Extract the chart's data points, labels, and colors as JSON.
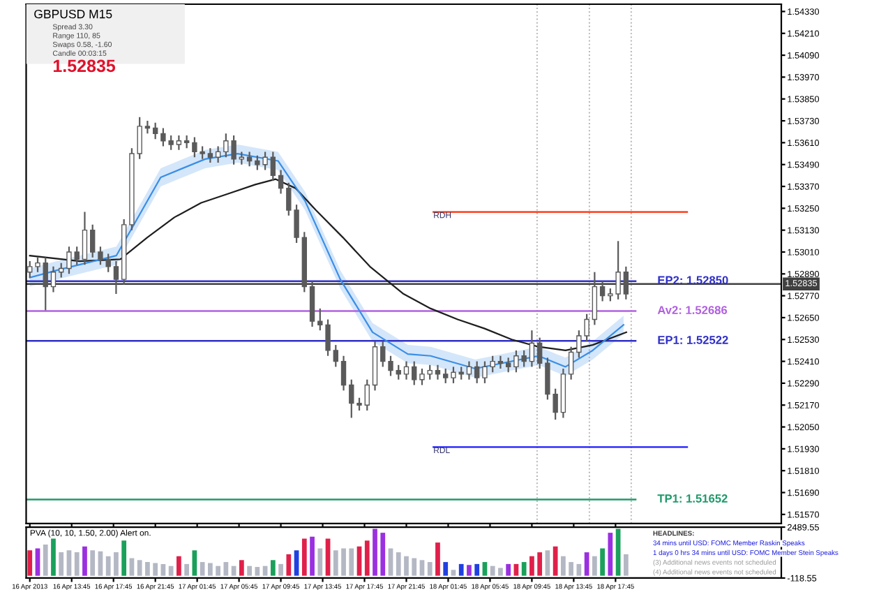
{
  "chart_data": [
    {
      "type": "candlestick",
      "title": "GBPUSD M15",
      "color": "#5a5a5a",
      "tick_labels": "y",
      "annotations": [
        "Spread 3.30",
        "Range 110, 85",
        "Swaps 0.58, -1.60",
        "Candle 00:03:15",
        "1.52835",
        {
          "text": "RDH",
          "x": "2013-04-18T00:20",
          "y": 1.5323
        },
        {
          "text": "RDL",
          "x": "2013-04-18T00:20",
          "y": 1.5194
        }
      ],
      "x": [
        "2013-04-16T09:45",
        "2013-04-16T10:30",
        "2013-04-16T11:15",
        "2013-04-16T12:00",
        "2013-04-16T12:45",
        "2013-04-16T13:30",
        "2013-04-16T14:15",
        "2013-04-16T15:00",
        "2013-04-16T15:45",
        "2013-04-16T16:30",
        "2013-04-16T17:15",
        "2013-04-16T18:00",
        "2013-04-16T18:45",
        "2013-04-16T19:30",
        "2013-04-16T20:15",
        "2013-04-16T21:00",
        "2013-04-16T21:45",
        "2013-04-16T22:30",
        "2013-04-16T23:15",
        "2013-04-17T00:00",
        "2013-04-17T00:45",
        "2013-04-17T01:30",
        "2013-04-17T02:15",
        "2013-04-17T03:00",
        "2013-04-17T03:45",
        "2013-04-17T04:30",
        "2013-04-17T05:15",
        "2013-04-17T06:00",
        "2013-04-17T06:45",
        "2013-04-17T07:30",
        "2013-04-17T08:15",
        "2013-04-17T09:00",
        "2013-04-17T09:45",
        "2013-04-17T10:30",
        "2013-04-17T11:15",
        "2013-04-17T12:00",
        "2013-04-17T12:45",
        "2013-04-17T13:30",
        "2013-04-17T14:15",
        "2013-04-17T15:00",
        "2013-04-17T15:45",
        "2013-04-17T16:30",
        "2013-04-17T17:15",
        "2013-04-17T18:00",
        "2013-04-17T18:45",
        "2013-04-17T19:30",
        "2013-04-17T20:15",
        "2013-04-17T21:00",
        "2013-04-17T21:45",
        "2013-04-17T22:30",
        "2013-04-17T23:15",
        "2013-04-18T00:00",
        "2013-04-18T00:45",
        "2013-04-18T01:30",
        "2013-04-18T02:15",
        "2013-04-18T03:00",
        "2013-04-18T03:45",
        "2013-04-18T04:30",
        "2013-04-18T05:15",
        "2013-04-18T06:00",
        "2013-04-18T06:45",
        "2013-04-18T07:30",
        "2013-04-18T08:15",
        "2013-04-18T09:00",
        "2013-04-18T09:45",
        "2013-04-18T10:30",
        "2013-04-18T11:15",
        "2013-04-18T12:00",
        "2013-04-18T12:45",
        "2013-04-18T13:30",
        "2013-04-18T14:15",
        "2013-04-18T15:00",
        "2013-04-18T15:45",
        "2013-04-18T16:30",
        "2013-04-18T17:15",
        "2013-04-18T18:00",
        "2013-04-18T18:45"
      ],
      "ohlc": [
        [
          1.529,
          1.5296,
          1.5287,
          1.5293
        ],
        [
          1.5293,
          1.5298,
          1.529,
          1.5295
        ],
        [
          1.5295,
          1.5298,
          1.5269,
          1.5282
        ],
        [
          1.5282,
          1.5293,
          1.5279,
          1.529
        ],
        [
          1.529,
          1.5295,
          1.5287,
          1.5292
        ],
        [
          1.5292,
          1.5304,
          1.5289,
          1.5301
        ],
        [
          1.5301,
          1.5304,
          1.5294,
          1.5297
        ],
        [
          1.5297,
          1.5323,
          1.5294,
          1.5313
        ],
        [
          1.5313,
          1.5316,
          1.5298,
          1.5301
        ],
        [
          1.5301,
          1.5304,
          1.5294,
          1.5297
        ],
        [
          1.5297,
          1.53,
          1.529,
          1.5293
        ],
        [
          1.5293,
          1.5296,
          1.5278,
          1.5286
        ],
        [
          1.5286,
          1.5319,
          1.5283,
          1.5316
        ],
        [
          1.5316,
          1.5358,
          1.5313,
          1.5355
        ],
        [
          1.5355,
          1.5375,
          1.5352,
          1.537
        ],
        [
          1.537,
          1.5373,
          1.5366,
          1.5369
        ],
        [
          1.5369,
          1.5372,
          1.5363,
          1.5366
        ],
        [
          1.5366,
          1.5369,
          1.5359,
          1.5362
        ],
        [
          1.5362,
          1.5365,
          1.5357,
          1.536
        ],
        [
          1.536,
          1.5365,
          1.5357,
          1.5362
        ],
        [
          1.5362,
          1.5365,
          1.5358,
          1.5361
        ],
        [
          1.5361,
          1.5364,
          1.5353,
          1.5356
        ],
        [
          1.5356,
          1.5359,
          1.5352,
          1.5355
        ],
        [
          1.5355,
          1.5358,
          1.535,
          1.5353
        ],
        [
          1.5353,
          1.5359,
          1.535,
          1.5356
        ],
        [
          1.5356,
          1.5366,
          1.5353,
          1.5362
        ],
        [
          1.5362,
          1.5365,
          1.5349,
          1.5352
        ],
        [
          1.5352,
          1.5356,
          1.5349,
          1.5353
        ],
        [
          1.5353,
          1.5356,
          1.5348,
          1.5351
        ],
        [
          1.5351,
          1.5354,
          1.5346,
          1.5349
        ],
        [
          1.5349,
          1.5356,
          1.5346,
          1.5353
        ],
        [
          1.5353,
          1.5356,
          1.534,
          1.5343
        ],
        [
          1.5343,
          1.5346,
          1.5333,
          1.5336
        ],
        [
          1.5336,
          1.5339,
          1.5321,
          1.5324
        ],
        [
          1.5324,
          1.5327,
          1.5306,
          1.5309
        ],
        [
          1.5309,
          1.5312,
          1.5279,
          1.5282
        ],
        [
          1.5282,
          1.5285,
          1.526,
          1.5263
        ],
        [
          1.5263,
          1.527,
          1.5258,
          1.5261
        ],
        [
          1.5261,
          1.5264,
          1.5244,
          1.5247
        ],
        [
          1.5247,
          1.525,
          1.5238,
          1.5241
        ],
        [
          1.5241,
          1.5244,
          1.5225,
          1.5228
        ],
        [
          1.5228,
          1.5231,
          1.521,
          1.5218
        ],
        [
          1.5218,
          1.5221,
          1.5214,
          1.5217
        ],
        [
          1.5217,
          1.5231,
          1.5214,
          1.5228
        ],
        [
          1.5228,
          1.5252,
          1.5225,
          1.5249
        ],
        [
          1.5249,
          1.5252,
          1.5238,
          1.5241
        ],
        [
          1.5241,
          1.5244,
          1.5233,
          1.5236
        ],
        [
          1.5236,
          1.5239,
          1.5231,
          1.5234
        ],
        [
          1.5234,
          1.5241,
          1.5231,
          1.5238
        ],
        [
          1.5238,
          1.5241,
          1.5228,
          1.5231
        ],
        [
          1.5231,
          1.5237,
          1.5228,
          1.5234
        ],
        [
          1.5234,
          1.5239,
          1.5231,
          1.5236
        ],
        [
          1.5236,
          1.5239,
          1.5231,
          1.5234
        ],
        [
          1.5234,
          1.5237,
          1.5229,
          1.5232
        ],
        [
          1.5232,
          1.5238,
          1.5229,
          1.5235
        ],
        [
          1.5235,
          1.5238,
          1.5231,
          1.5234
        ],
        [
          1.5234,
          1.5241,
          1.5231,
          1.5238
        ],
        [
          1.5238,
          1.5241,
          1.5229,
          1.5232
        ],
        [
          1.5232,
          1.5241,
          1.5229,
          1.5238
        ],
        [
          1.5238,
          1.5244,
          1.5235,
          1.5241
        ],
        [
          1.5241,
          1.5244,
          1.5237,
          1.524
        ],
        [
          1.524,
          1.5243,
          1.5235,
          1.5238
        ],
        [
          1.5238,
          1.5247,
          1.5235,
          1.5244
        ],
        [
          1.5244,
          1.5247,
          1.5238,
          1.5241
        ],
        [
          1.5241,
          1.5258,
          1.5238,
          1.5251
        ],
        [
          1.5251,
          1.5254,
          1.5237,
          1.524
        ],
        [
          1.524,
          1.5243,
          1.522,
          1.5223
        ],
        [
          1.5223,
          1.5226,
          1.5209,
          1.5213
        ],
        [
          1.5213,
          1.5237,
          1.521,
          1.5234
        ],
        [
          1.5234,
          1.5249,
          1.5231,
          1.5246
        ],
        [
          1.5246,
          1.5258,
          1.5243,
          1.5255
        ],
        [
          1.5255,
          1.5267,
          1.5252,
          1.5264
        ],
        [
          1.5264,
          1.529,
          1.5261,
          1.5282
        ],
        [
          1.5282,
          1.5285,
          1.5274,
          1.5277
        ],
        [
          1.5277,
          1.5281,
          1.5274,
          1.5278
        ],
        [
          1.5278,
          1.5307,
          1.5275,
          1.529
        ],
        [
          1.529,
          1.5293,
          1.5275,
          1.5278
        ]
      ],
      "series": [
        {
          "type": "line",
          "color": "#1e1e1e",
          "x": [
            "2013-04-16T09:45",
            "2013-04-16T14:31",
            "2013-04-16T18:24",
            "2013-04-16T20:59",
            "2013-04-16T23:34",
            "2013-04-17T02:08",
            "2013-04-17T04:43",
            "2013-04-17T07:18",
            "2013-04-17T09:14",
            "2013-04-17T11:10",
            "2013-04-17T13:06",
            "2013-04-17T15:41",
            "2013-04-17T18:16",
            "2013-04-17T21:29",
            "2013-04-18T00:04",
            "2013-04-18T02:39",
            "2013-04-18T05:14",
            "2013-04-18T07:49",
            "2013-04-18T10:23",
            "2013-04-18T12:58",
            "2013-04-18T15:34",
            "2013-04-18T18:47"
          ],
          "values": [
            1.5299,
            1.5296,
            1.5297,
            1.5309,
            1.532,
            1.5328,
            1.5333,
            1.5338,
            1.5341,
            1.5336,
            1.5324,
            1.5309,
            1.5293,
            1.5278,
            1.527,
            1.5264,
            1.5259,
            1.5253,
            1.5249,
            1.5247,
            1.525,
            1.5257
          ]
        },
        {
          "type": "line",
          "color": "#3a8ee6",
          "x": [
            "2013-04-16T09:45",
            "2013-04-16T12:20",
            "2013-04-16T18:01",
            "2013-04-16T22:16",
            "2013-04-17T02:31",
            "2013-04-17T05:37",
            "2013-04-17T09:29",
            "2013-04-17T12:04",
            "2013-04-17T15:26",
            "2013-04-17T18:31",
            "2013-04-17T21:53",
            "2013-04-18T00:04",
            "2013-04-18T04:20",
            "2013-04-18T10:23",
            "2013-04-18T12:58",
            "2013-04-18T15:34",
            "2013-04-18T18:31"
          ],
          "values": [
            1.5287,
            1.5291,
            1.5299,
            1.5342,
            1.5352,
            1.5355,
            1.5351,
            1.5329,
            1.5286,
            1.5257,
            1.5245,
            1.5244,
            1.5237,
            1.5244,
            1.5238,
            1.5247,
            1.5261
          ],
          "lower": [
            1.5282,
            1.5286,
            1.5294,
            1.5337,
            1.5347,
            1.535,
            1.5346,
            1.5324,
            1.5281,
            1.5252,
            1.524,
            1.5239,
            1.5232,
            1.5239,
            1.5233,
            1.5242,
            1.5256
          ],
          "upper": [
            1.5292,
            1.5296,
            1.5304,
            1.5347,
            1.5357,
            1.536,
            1.5356,
            1.5334,
            1.5291,
            1.5262,
            1.525,
            1.5249,
            1.5242,
            1.5249,
            1.5243,
            1.5252,
            1.5266
          ]
        },
        {
          "type": "line",
          "color": "#ff2a00",
          "x": [
            "2013-04-18T00:20",
            "2013-04-19T00:36"
          ],
          "values": [
            1.5323,
            1.5323
          ]
        },
        {
          "type": "line",
          "color": "#1a1aff",
          "x": [
            "2013-04-18T00:20",
            "2013-04-19T00:36"
          ],
          "values": [
            1.5194,
            1.5194
          ]
        }
      ],
      "ref_lines": [
        {
          "axis": "y",
          "value": 1.5285,
          "label": "EP2: 1.52850",
          "color": "#3030c8"
        },
        {
          "axis": "y",
          "value": 1.52686,
          "label": "Av2: 1.52686",
          "color": "#b060e0"
        },
        {
          "axis": "y",
          "value": 1.52522,
          "label": "EP1: 1.52522",
          "color": "#3030c8"
        },
        {
          "axis": "y",
          "value": 1.51652,
          "label": "TP1: 1.51652",
          "color": "#1f9a6a"
        },
        {
          "axis": "y",
          "value": 1.52835,
          "label": "1.52835",
          "color": "#404040"
        },
        {
          "axis": "x",
          "value": "2013-04-18T10:15",
          "color": "#b4b4b4",
          "line_style": "dotted"
        },
        {
          "axis": "x",
          "value": "2013-04-18T15:15",
          "color": "#b4b4b4",
          "line_style": "dotted"
        },
        {
          "axis": "x",
          "value": "2013-04-18T19:15",
          "color": "#b4b4b4",
          "line_style": "dotted"
        }
      ],
      "xlim": [
        "2013-04-16T09:24",
        "2013-04-19T09:36"
      ],
      "xticks": [
        {
          "value": "2013-04-16T09:45",
          "label": null
        },
        {
          "value": "2013-04-16T13:45",
          "label": null
        },
        {
          "value": "2013-04-16T17:45",
          "label": null
        },
        {
          "value": "2013-04-16T21:45",
          "label": null
        },
        {
          "value": "2013-04-17T01:45",
          "label": null
        },
        {
          "value": "2013-04-17T05:45",
          "label": null
        },
        {
          "value": "2013-04-17T09:45",
          "label": null
        },
        {
          "value": "2013-04-17T13:45",
          "label": null
        },
        {
          "value": "2013-04-17T17:45",
          "label": null
        },
        {
          "value": "2013-04-17T21:45",
          "label": null
        },
        {
          "value": "2013-04-18T01:45",
          "label": null
        },
        {
          "value": "2013-04-18T05:45",
          "label": null
        },
        {
          "value": "2013-04-18T09:45",
          "label": null
        },
        {
          "value": "2013-04-18T13:45",
          "label": null
        },
        {
          "value": "2013-04-18T17:45",
          "label": null
        }
      ],
      "ylim": [
        1.5152,
        1.5437
      ],
      "yticks": [
        {
          "value": 1.5433,
          "label": "1.54330"
        },
        {
          "value": 1.5421,
          "label": "1.54210"
        },
        {
          "value": 1.5409,
          "label": "1.54090"
        },
        {
          "value": 1.5397,
          "label": "1.53970"
        },
        {
          "value": 1.5385,
          "label": "1.53850"
        },
        {
          "value": 1.5373,
          "label": "1.53730"
        },
        {
          "value": 1.5361,
          "label": "1.53610"
        },
        {
          "value": 1.5349,
          "label": "1.53490"
        },
        {
          "value": 1.5337,
          "label": "1.53370"
        },
        {
          "value": 1.5325,
          "label": "1.53250"
        },
        {
          "value": 1.5313,
          "label": "1.53130"
        },
        {
          "value": 1.5301,
          "label": "1.53010"
        },
        {
          "value": 1.5289,
          "label": "1.52890"
        },
        {
          "value": 1.5277,
          "label": "1.52770"
        },
        {
          "value": 1.5265,
          "label": "1.52650"
        },
        {
          "value": 1.5253,
          "label": "1.52530"
        },
        {
          "value": 1.5241,
          "label": "1.52410"
        },
        {
          "value": 1.5229,
          "label": "1.52290"
        },
        {
          "value": 1.5217,
          "label": "1.52170"
        },
        {
          "value": 1.5205,
          "label": "1.52050"
        },
        {
          "value": 1.5193,
          "label": "1.51930"
        },
        {
          "value": 1.5181,
          "label": "1.51810"
        },
        {
          "value": 1.5169,
          "label": "1.51690"
        },
        {
          "value": 1.5157,
          "label": "1.51570"
        }
      ]
    },
    {
      "type": "bar",
      "title": "PVA (10, 10, 1.50, 2.00) Alert on.",
      "annotations": [
        "HEADLINES:",
        "34 mins until USD: FOMC Member Raskin Speaks",
        "1 days 0 hrs 34 mins until USD: FOMC Member Stein Speaks",
        "(3) Additional news events not scheduled",
        "(4) Additional news events not scheduled"
      ],
      "x": [
        "2013-04-16T09:45",
        "2013-04-16T10:30",
        "2013-04-16T11:15",
        "2013-04-16T12:00",
        "2013-04-16T12:45",
        "2013-04-16T13:30",
        "2013-04-16T14:15",
        "2013-04-16T15:00",
        "2013-04-16T15:45",
        "2013-04-16T16:30",
        "2013-04-16T17:15",
        "2013-04-16T18:00",
        "2013-04-16T18:45",
        "2013-04-16T19:30",
        "2013-04-16T20:15",
        "2013-04-16T21:00",
        "2013-04-16T21:45",
        "2013-04-16T22:30",
        "2013-04-16T23:15",
        "2013-04-17T00:00",
        "2013-04-17T00:45",
        "2013-04-17T01:30",
        "2013-04-17T02:15",
        "2013-04-17T03:00",
        "2013-04-17T03:45",
        "2013-04-17T04:30",
        "2013-04-17T05:15",
        "2013-04-17T06:00",
        "2013-04-17T06:45",
        "2013-04-17T07:30",
        "2013-04-17T08:15",
        "2013-04-17T09:00",
        "2013-04-17T09:45",
        "2013-04-17T10:30",
        "2013-04-17T11:15",
        "2013-04-17T12:00",
        "2013-04-17T12:45",
        "2013-04-17T13:30",
        "2013-04-17T14:15",
        "2013-04-17T15:00",
        "2013-04-17T15:45",
        "2013-04-17T16:30",
        "2013-04-17T17:15",
        "2013-04-17T18:00",
        "2013-04-17T18:45",
        "2013-04-17T19:30",
        "2013-04-17T20:15",
        "2013-04-17T21:00",
        "2013-04-17T21:45",
        "2013-04-17T22:30",
        "2013-04-17T23:15",
        "2013-04-18T00:00",
        "2013-04-18T00:45",
        "2013-04-18T01:30",
        "2013-04-18T02:15",
        "2013-04-18T03:00",
        "2013-04-18T03:45",
        "2013-04-18T04:30",
        "2013-04-18T05:15",
        "2013-04-18T06:00",
        "2013-04-18T06:45",
        "2013-04-18T07:30",
        "2013-04-18T08:15",
        "2013-04-18T09:00",
        "2013-04-18T09:45",
        "2013-04-18T10:30",
        "2013-04-18T11:15",
        "2013-04-18T12:00",
        "2013-04-18T12:45",
        "2013-04-18T13:30",
        "2013-04-18T14:15",
        "2013-04-18T15:00",
        "2013-04-18T15:45",
        "2013-04-18T16:30",
        "2013-04-18T17:15",
        "2013-04-18T18:00",
        "2013-04-18T18:45"
      ],
      "values": [
        1300,
        1400,
        1600,
        1900,
        1200,
        1300,
        1200,
        1500,
        1300,
        1250,
        1000,
        1200,
        1800,
        900,
        800,
        700,
        650,
        600,
        500,
        1000,
        600,
        1300,
        700,
        650,
        500,
        700,
        500,
        800,
        500,
        450,
        500,
        800,
        600,
        1100,
        1300,
        1900,
        2000,
        1400,
        1900,
        1300,
        1400,
        1400,
        1500,
        1800,
        2400,
        2200,
        1400,
        1200,
        1000,
        900,
        800,
        700,
        1700,
        700,
        300,
        600,
        550,
        600,
        700,
        500,
        400,
        600,
        600,
        700,
        1000,
        1200,
        1300,
        1500,
        1000,
        700,
        600,
        1200,
        1000,
        1400,
        2200,
        2400,
        1100
      ],
      "colors": [
        "#e0204a",
        "#9a30e0",
        "#b4b8c4",
        "#1aa05a",
        "#b4b8c4",
        "#b4b8c4",
        "#b4b8c4",
        "#9a30e0",
        "#b4b8c4",
        "#b4b8c4",
        "#b4b8c4",
        "#b4b8c4",
        "#1aa05a",
        "#b4b8c4",
        "#b4b8c4",
        "#b4b8c4",
        "#b4b8c4",
        "#b4b8c4",
        "#b4b8c4",
        "#e0204a",
        "#b4b8c4",
        "#1aa05a",
        "#b4b8c4",
        "#b4b8c4",
        "#b4b8c4",
        "#b4b8c4",
        "#b4b8c4",
        "#e0204a",
        "#b4b8c4",
        "#b4b8c4",
        "#b4b8c4",
        "#1aa05a",
        "#b4b8c4",
        "#e0204a",
        "#2040e0",
        "#e0204a",
        "#9a30e0",
        "#b4b8c4",
        "#e0204a",
        "#b4b8c4",
        "#b4b8c4",
        "#b4b8c4",
        "#e0204a",
        "#e0204a",
        "#9a30e0",
        "#9a30e0",
        "#b4b8c4",
        "#b4b8c4",
        "#b4b8c4",
        "#b4b8c4",
        "#b4b8c4",
        "#b4b8c4",
        "#e0204a",
        "#2040e0",
        "#b4b8c4",
        "#2040e0",
        "#9a30e0",
        "#2040e0",
        "#1aa05a",
        "#b4b8c4",
        "#b4b8c4",
        "#9a30e0",
        "#e0204a",
        "#1aa05a",
        "#e0204a",
        "#e0204a",
        "#b4b8c4",
        "#e0204a",
        "#b4b8c4",
        "#b4b8c4",
        "#b4b8c4",
        "#9a30e0",
        "#b4b8c4",
        "#1aa05a",
        "#9a30e0",
        "#1aa05a",
        "#b4b8c4"
      ],
      "xlim": [
        "2013-04-16T09:24",
        "2013-04-19T09:36"
      ],
      "ylim": [
        -118.55,
        2489.55
      ],
      "yticks": [
        {
          "value": 2489.55,
          "label": "2489.55"
        },
        {
          "value": -118.55,
          "label": "-118.55"
        }
      ],
      "xticks": [
        {
          "value": "2013-04-16T09:45",
          "label": "16 Apr 2013"
        },
        {
          "value": "2013-04-16T13:45",
          "label": "16 Apr 13:45"
        },
        {
          "value": "2013-04-16T17:45",
          "label": "16 Apr 17:45"
        },
        {
          "value": "2013-04-16T21:45",
          "label": "16 Apr 21:45"
        },
        {
          "value": "2013-04-17T01:45",
          "label": "17 Apr 01:45"
        },
        {
          "value": "2013-04-17T05:45",
          "label": "17 Apr 05:45"
        },
        {
          "value": "2013-04-17T09:45",
          "label": "17 Apr 09:45"
        },
        {
          "value": "2013-04-17T13:45",
          "label": "17 Apr 13:45"
        },
        {
          "value": "2013-04-17T17:45",
          "label": "17 Apr 17:45"
        },
        {
          "value": "2013-04-17T21:45",
          "label": "17 Apr 21:45"
        },
        {
          "value": "2013-04-18T01:45",
          "label": "18 Apr 01:45"
        },
        {
          "value": "2013-04-18T05:45",
          "label": "18 Apr 05:45"
        },
        {
          "value": "2013-04-18T09:45",
          "label": "18 Apr 09:45"
        },
        {
          "value": "2013-04-18T13:45",
          "label": "18 Apr 13:45"
        },
        {
          "value": "2013-04-18T17:45",
          "label": "18 Apr 17:45"
        }
      ]
    }
  ]
}
